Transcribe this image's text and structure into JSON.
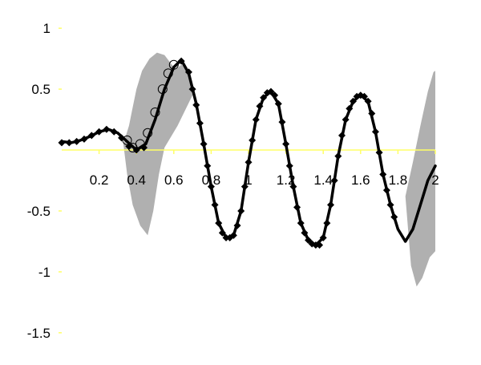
{
  "chart_data": {
    "type": "line",
    "title": "",
    "xlabel": "",
    "ylabel": "",
    "xlim": [
      0,
      2
    ],
    "ylim": [
      -1.6,
      1.1
    ],
    "grid": false,
    "legend": "none",
    "axis_color": "#ffff66",
    "band_color": "#b0b0b0",
    "line_color": "#000000",
    "x_ticks": [
      {
        "value": 0.2,
        "label": "0.2"
      },
      {
        "value": 0.4,
        "label": "0.4"
      },
      {
        "value": 0.6,
        "label": "0.6"
      },
      {
        "value": 0.8,
        "label": "0.8"
      },
      {
        "value": 1.0,
        "label": "1"
      },
      {
        "value": 1.2,
        "label": "1.2"
      },
      {
        "value": 1.4,
        "label": "1.4"
      },
      {
        "value": 1.6,
        "label": "1.6"
      },
      {
        "value": 1.8,
        "label": "1.8"
      },
      {
        "value": 2.0,
        "label": "2"
      }
    ],
    "y_ticks": [
      {
        "value": 1,
        "label": "1"
      },
      {
        "value": 0.5,
        "label": "0.5"
      },
      {
        "value": -0.5,
        "label": "-0.5"
      },
      {
        "value": -1,
        "label": "-1"
      },
      {
        "value": -1.5,
        "label": "-1.5"
      }
    ],
    "band": {
      "upper": [
        {
          "x": 0.33,
          "y": 0.05
        },
        {
          "x": 0.36,
          "y": 0.2
        },
        {
          "x": 0.38,
          "y": 0.35
        },
        {
          "x": 0.4,
          "y": 0.5
        },
        {
          "x": 0.43,
          "y": 0.65
        },
        {
          "x": 0.47,
          "y": 0.75
        },
        {
          "x": 0.51,
          "y": 0.8
        },
        {
          "x": 0.55,
          "y": 0.78
        },
        {
          "x": 0.58,
          "y": 0.72
        },
        {
          "x": 0.61,
          "y": 0.66
        },
        {
          "x": 0.64,
          "y": 0.7
        },
        {
          "x": 0.67,
          "y": 0.68
        },
        {
          "x": 0.7,
          "y": 0.45
        }
      ],
      "lower": [
        {
          "x": 0.7,
          "y": 0.45
        },
        {
          "x": 0.62,
          "y": 0.2
        },
        {
          "x": 0.55,
          "y": 0.02
        },
        {
          "x": 0.52,
          "y": -0.2
        },
        {
          "x": 0.49,
          "y": -0.5
        },
        {
          "x": 0.46,
          "y": -0.7
        },
        {
          "x": 0.42,
          "y": -0.62
        },
        {
          "x": 0.38,
          "y": -0.45
        },
        {
          "x": 0.35,
          "y": -0.2
        },
        {
          "x": 0.33,
          "y": 0.05
        }
      ],
      "upper2": [
        {
          "x": 1.84,
          "y": -0.38
        },
        {
          "x": 1.88,
          "y": -0.1
        },
        {
          "x": 1.92,
          "y": 0.2
        },
        {
          "x": 1.96,
          "y": 0.48
        },
        {
          "x": 1.99,
          "y": 0.64
        },
        {
          "x": 2.0,
          "y": 0.65
        }
      ],
      "lower2": [
        {
          "x": 2.0,
          "y": -0.83
        },
        {
          "x": 1.97,
          "y": -0.88
        },
        {
          "x": 1.93,
          "y": -1.05
        },
        {
          "x": 1.9,
          "y": -1.12
        },
        {
          "x": 1.87,
          "y": -0.95
        },
        {
          "x": 1.84,
          "y": -0.38
        }
      ]
    },
    "series": [
      {
        "kind": "curve",
        "points": [
          {
            "x": 0.0,
            "y": 0.07
          },
          {
            "x": 0.05,
            "y": 0.06
          },
          {
            "x": 0.1,
            "y": 0.08
          },
          {
            "x": 0.15,
            "y": 0.11
          },
          {
            "x": 0.2,
            "y": 0.15
          },
          {
            "x": 0.25,
            "y": 0.17
          },
          {
            "x": 0.3,
            "y": 0.14
          },
          {
            "x": 0.35,
            "y": 0.07
          },
          {
            "x": 0.4,
            "y": 0.0
          },
          {
            "x": 0.45,
            "y": 0.05
          },
          {
            "x": 0.5,
            "y": 0.25
          },
          {
            "x": 0.55,
            "y": 0.5
          },
          {
            "x": 0.6,
            "y": 0.68
          },
          {
            "x": 0.64,
            "y": 0.74
          },
          {
            "x": 0.68,
            "y": 0.63
          },
          {
            "x": 0.72,
            "y": 0.38
          },
          {
            "x": 0.76,
            "y": 0.05
          },
          {
            "x": 0.8,
            "y": -0.3
          },
          {
            "x": 0.84,
            "y": -0.6
          },
          {
            "x": 0.88,
            "y": -0.72
          },
          {
            "x": 0.92,
            "y": -0.7
          },
          {
            "x": 0.96,
            "y": -0.5
          },
          {
            "x": 1.0,
            "y": -0.1
          },
          {
            "x": 1.04,
            "y": 0.25
          },
          {
            "x": 1.08,
            "y": 0.43
          },
          {
            "x": 1.12,
            "y": 0.48
          },
          {
            "x": 1.16,
            "y": 0.38
          },
          {
            "x": 1.2,
            "y": 0.05
          },
          {
            "x": 1.24,
            "y": -0.3
          },
          {
            "x": 1.28,
            "y": -0.6
          },
          {
            "x": 1.32,
            "y": -0.74
          },
          {
            "x": 1.36,
            "y": -0.78
          },
          {
            "x": 1.4,
            "y": -0.72
          },
          {
            "x": 1.44,
            "y": -0.45
          },
          {
            "x": 1.48,
            "y": -0.05
          },
          {
            "x": 1.52,
            "y": 0.25
          },
          {
            "x": 1.56,
            "y": 0.4
          },
          {
            "x": 1.6,
            "y": 0.45
          },
          {
            "x": 1.64,
            "y": 0.4
          },
          {
            "x": 1.68,
            "y": 0.15
          },
          {
            "x": 1.72,
            "y": -0.2
          },
          {
            "x": 1.76,
            "y": -0.45
          },
          {
            "x": 1.8,
            "y": -0.65
          },
          {
            "x": 1.84,
            "y": -0.75
          },
          {
            "x": 1.88,
            "y": -0.65
          },
          {
            "x": 1.92,
            "y": -0.45
          },
          {
            "x": 1.96,
            "y": -0.25
          },
          {
            "x": 2.0,
            "y": -0.13
          }
        ]
      },
      {
        "kind": "filled-markers",
        "points": [
          {
            "x": 0.0,
            "y": 0.06
          },
          {
            "x": 0.04,
            "y": 0.06
          },
          {
            "x": 0.08,
            "y": 0.07
          },
          {
            "x": 0.12,
            "y": 0.09
          },
          {
            "x": 0.16,
            "y": 0.12
          },
          {
            "x": 0.2,
            "y": 0.15
          },
          {
            "x": 0.24,
            "y": 0.17
          },
          {
            "x": 0.28,
            "y": 0.15
          },
          {
            "x": 0.32,
            "y": 0.1
          },
          {
            "x": 0.36,
            "y": 0.03
          },
          {
            "x": 0.4,
            "y": 0.0
          },
          {
            "x": 0.44,
            "y": 0.02
          },
          {
            "x": 0.64,
            "y": 0.73
          },
          {
            "x": 0.68,
            "y": 0.64
          },
          {
            "x": 0.7,
            "y": 0.5
          },
          {
            "x": 0.72,
            "y": 0.37
          },
          {
            "x": 0.74,
            "y": 0.22
          },
          {
            "x": 0.76,
            "y": 0.05
          },
          {
            "x": 0.78,
            "y": -0.13
          },
          {
            "x": 0.8,
            "y": -0.3
          },
          {
            "x": 0.82,
            "y": -0.45
          },
          {
            "x": 0.84,
            "y": -0.6
          },
          {
            "x": 0.86,
            "y": -0.68
          },
          {
            "x": 0.88,
            "y": -0.72
          },
          {
            "x": 0.9,
            "y": -0.72
          },
          {
            "x": 0.92,
            "y": -0.7
          },
          {
            "x": 0.94,
            "y": -0.62
          },
          {
            "x": 0.96,
            "y": -0.5
          },
          {
            "x": 0.98,
            "y": -0.3
          },
          {
            "x": 1.0,
            "y": -0.1
          },
          {
            "x": 1.02,
            "y": 0.08
          },
          {
            "x": 1.04,
            "y": 0.25
          },
          {
            "x": 1.06,
            "y": 0.36
          },
          {
            "x": 1.08,
            "y": 0.43
          },
          {
            "x": 1.1,
            "y": 0.47
          },
          {
            "x": 1.12,
            "y": 0.48
          },
          {
            "x": 1.14,
            "y": 0.45
          },
          {
            "x": 1.16,
            "y": 0.38
          },
          {
            "x": 1.18,
            "y": 0.23
          },
          {
            "x": 1.2,
            "y": 0.05
          },
          {
            "x": 1.22,
            "y": -0.13
          },
          {
            "x": 1.24,
            "y": -0.3
          },
          {
            "x": 1.26,
            "y": -0.47
          },
          {
            "x": 1.28,
            "y": -0.6
          },
          {
            "x": 1.3,
            "y": -0.68
          },
          {
            "x": 1.32,
            "y": -0.74
          },
          {
            "x": 1.34,
            "y": -0.77
          },
          {
            "x": 1.36,
            "y": -0.78
          },
          {
            "x": 1.38,
            "y": -0.78
          },
          {
            "x": 1.4,
            "y": -0.72
          },
          {
            "x": 1.42,
            "y": -0.6
          },
          {
            "x": 1.44,
            "y": -0.45
          },
          {
            "x": 1.46,
            "y": -0.25
          },
          {
            "x": 1.48,
            "y": -0.05
          },
          {
            "x": 1.5,
            "y": 0.12
          },
          {
            "x": 1.52,
            "y": 0.25
          },
          {
            "x": 1.54,
            "y": 0.34
          },
          {
            "x": 1.56,
            "y": 0.4
          },
          {
            "x": 1.58,
            "y": 0.44
          },
          {
            "x": 1.6,
            "y": 0.45
          },
          {
            "x": 1.62,
            "y": 0.44
          },
          {
            "x": 1.64,
            "y": 0.4
          },
          {
            "x": 1.66,
            "y": 0.3
          },
          {
            "x": 1.68,
            "y": 0.15
          },
          {
            "x": 1.7,
            "y": -0.02
          },
          {
            "x": 1.72,
            "y": -0.2
          },
          {
            "x": 1.74,
            "y": -0.33
          },
          {
            "x": 1.76,
            "y": -0.45
          },
          {
            "x": 1.78,
            "y": -0.55
          }
        ]
      },
      {
        "kind": "open-markers",
        "points": [
          {
            "x": 0.35,
            "y": 0.08
          },
          {
            "x": 0.38,
            "y": 0.02
          },
          {
            "x": 0.42,
            "y": 0.05
          },
          {
            "x": 0.46,
            "y": 0.14
          },
          {
            "x": 0.5,
            "y": 0.31
          },
          {
            "x": 0.54,
            "y": 0.5
          },
          {
            "x": 0.57,
            "y": 0.63
          },
          {
            "x": 0.6,
            "y": 0.7
          }
        ]
      }
    ]
  }
}
